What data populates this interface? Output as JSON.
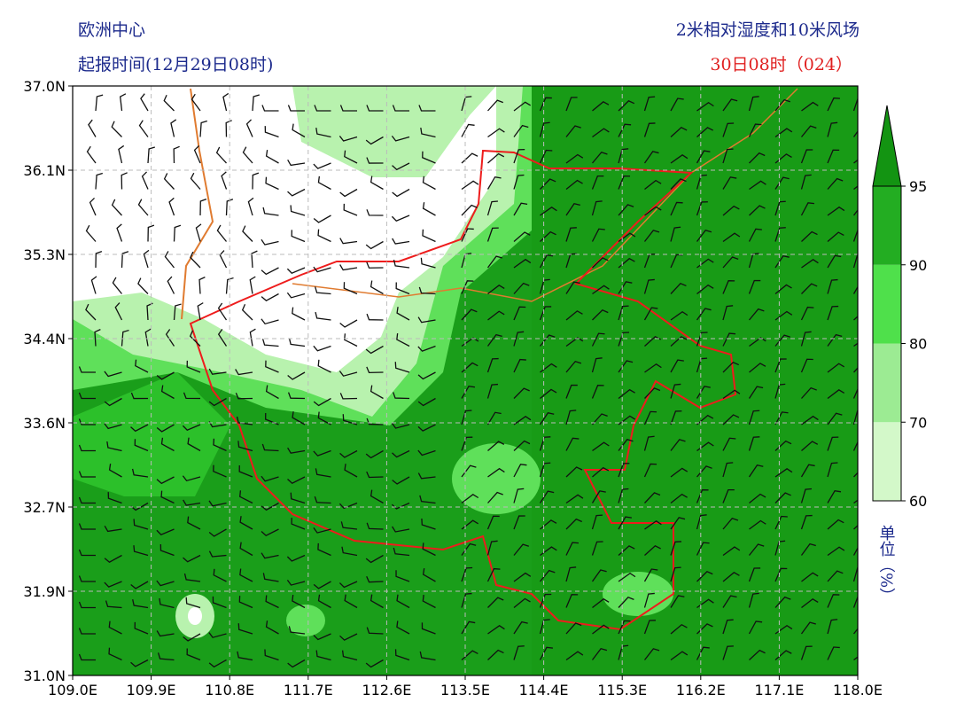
{
  "header": {
    "model": "欧洲中心",
    "issue_time": "起报时间(12月29日08时)",
    "product": "2米相对湿度和10米风场",
    "valid_time": "30日08时（024）"
  },
  "map": {
    "lat_ticks": [
      "37.0N",
      "36.1N",
      "35.3N",
      "34.4N",
      "33.6N",
      "32.7N",
      "31.9N",
      "31.0N"
    ],
    "lon_ticks": [
      "109.0E",
      "109.9E",
      "110.8E",
      "111.7E",
      "112.6E",
      "113.5E",
      "114.4E",
      "115.3E",
      "116.2E",
      "117.1E",
      "118.0E"
    ]
  },
  "colorbar": {
    "levels": [
      60,
      70,
      80,
      90,
      95
    ],
    "colors": [
      "#d3f8c9",
      "#9ceb93",
      "#4fe04b",
      "#23ad22",
      "#139412"
    ],
    "unit": "单位（%）"
  }
}
